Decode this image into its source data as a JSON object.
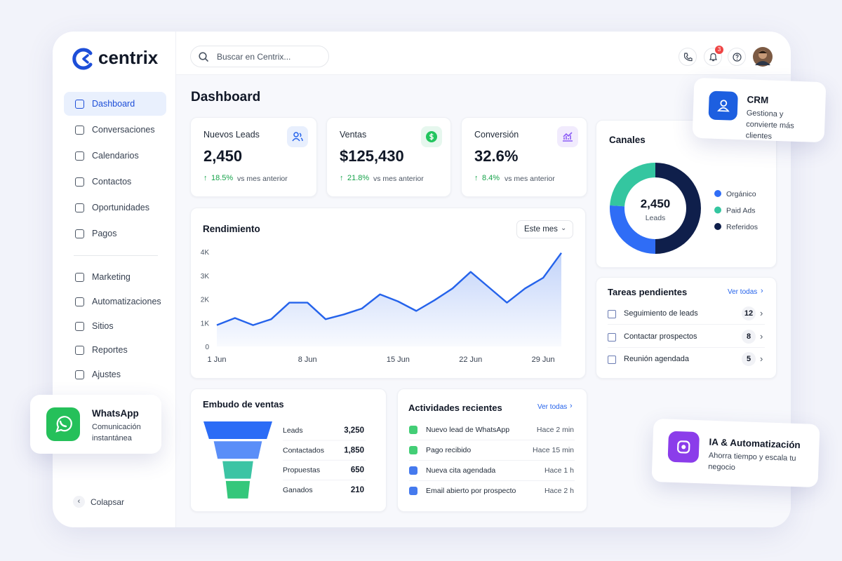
{
  "brand": "centrix",
  "search_placeholder": "Buscar en Centrix...",
  "notifications": 3,
  "sidebar": {
    "nav": [
      "Dashboard",
      "Conversaciones",
      "Calendarios",
      "Contactos",
      "Oportunidades",
      "Pagos"
    ],
    "nav_secondary": [
      "Marketing",
      "Automatizaciones",
      "Sitios",
      "Reportes",
      "Ajustes"
    ],
    "collapse": "Colapsar"
  },
  "page_title": "Dashboard",
  "kpis": [
    {
      "label": "Nuevos Leads",
      "value": "2,450",
      "change": "18.5%",
      "note": "vs mes anterior"
    },
    {
      "label": "Ventas",
      "value": "$125,430",
      "change": "21.8%",
      "note": "vs mes anterior"
    },
    {
      "label": "Conversión",
      "value": "32.6%",
      "change": "8.4%",
      "note": "vs mes anterior"
    }
  ],
  "performance_filter": "Este mes",
  "chart_data": [
    {
      "type": "area",
      "title": "Rendimiento",
      "color": "#2563eb",
      "categories": [
        "1 Jun",
        null,
        null,
        null,
        null,
        "8 Jun",
        null,
        null,
        null,
        null,
        "15 Jun",
        null,
        null,
        null,
        "22 Jun",
        null,
        null,
        null,
        "29 Jun",
        null
      ],
      "values": [
        900,
        1200,
        900,
        1150,
        1850,
        1850,
        1150,
        1350,
        1600,
        2200,
        1900,
        1500,
        1950,
        2450,
        3150,
        2500,
        1850,
        2450,
        2900,
        3950
      ],
      "ylim": [
        0,
        4000
      ],
      "yticks": [
        0,
        {
          "value": 1000,
          "label": "1K"
        },
        {
          "value": 2000,
          "label": "2K"
        },
        {
          "value": 3000,
          "label": "3K"
        },
        {
          "value": 4000,
          "label": "4K"
        }
      ]
    },
    {
      "type": "donut",
      "title": "Canales",
      "center_value": "2,450",
      "center_label": "Leads",
      "categories": [
        "Orgánico",
        "Paid Ads",
        "Referidos"
      ],
      "values": [
        26,
        24,
        50
      ],
      "colors": [
        "#2f6df6",
        "#34c6a0",
        "#0f1f4b"
      ]
    },
    {
      "type": "funnel",
      "title": "Embudo de ventas",
      "categories": [
        "Leads",
        "Contactados",
        "Propuestas",
        "Ganados"
      ],
      "values": [
        3250,
        1850,
        650,
        210
      ],
      "value_labels": [
        "3,250",
        "1,850",
        "650",
        "210"
      ],
      "colors": [
        "#2b6cf6",
        "#5a8ef8",
        "#3cc4a4",
        "#34c77b"
      ]
    }
  ],
  "tasks": {
    "title": "Tareas pendientes",
    "link": "Ver todas",
    "items": [
      {
        "label": "Seguimiento de leads",
        "count": 12
      },
      {
        "label": "Contactar prospectos",
        "count": 8
      },
      {
        "label": "Reunión agendada",
        "count": 5
      }
    ]
  },
  "activities": {
    "title": "Actividades recientes",
    "link": "Ver todas",
    "items": [
      {
        "text": "Nuevo lead de WhatsApp",
        "time": "Hace 2 min"
      },
      {
        "text": "Pago recibido",
        "time": "Hace 15 min"
      },
      {
        "text": "Nueva cita agendada",
        "time": "Hace 1 h"
      },
      {
        "text": "Email abierto por prospecto",
        "time": "Hace 2 h"
      }
    ]
  },
  "promo_cards": {
    "crm": {
      "title": "CRM",
      "text": "Gestiona y convierte más clientes"
    },
    "whatsapp": {
      "title": "WhatsApp",
      "text": "Comunicación instantánea"
    },
    "ai": {
      "title": "IA & Automatización",
      "text": "Ahorra tiempo y escala tu negocio"
    }
  }
}
